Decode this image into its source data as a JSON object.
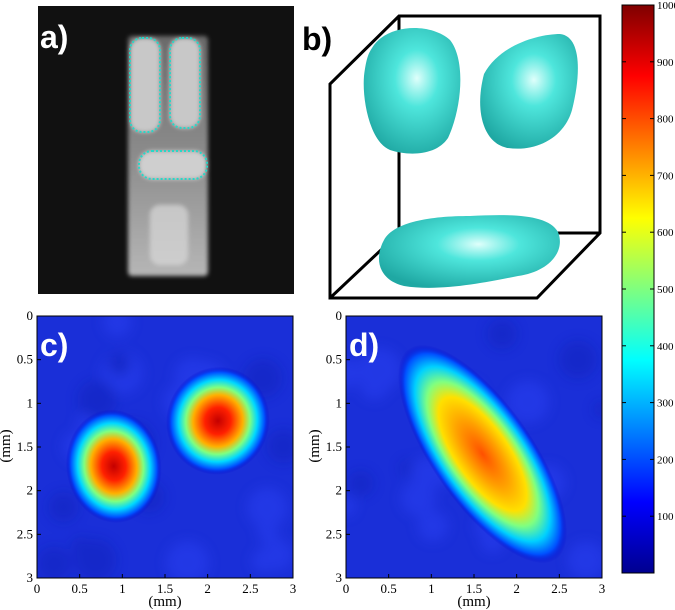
{
  "panels": {
    "a": {
      "label": "a)"
    },
    "b": {
      "label": "b)"
    }
  },
  "chart_data": [
    {
      "type": "heatmap",
      "panel": "c)",
      "xlabel": "(mm)",
      "ylabel": "(mm)",
      "xlim": [
        0,
        3
      ],
      "ylim": [
        0,
        3
      ],
      "x_ticks": [
        "0",
        "0.5",
        "1",
        "1.5",
        "2",
        "2.5",
        "3"
      ],
      "y_ticks": [
        "0",
        "0.5",
        "1",
        "1.5",
        "2",
        "2.5",
        "3"
      ],
      "blobs": [
        {
          "cx": 0.9,
          "cy": 1.72,
          "rx": 0.36,
          "ry": 0.42,
          "rot": -8,
          "peak": 980
        },
        {
          "cx": 2.12,
          "cy": 1.2,
          "rx": 0.39,
          "ry": 0.4,
          "rot": 15,
          "peak": 930
        }
      ]
    },
    {
      "type": "heatmap",
      "panel": "d)",
      "xlabel": "(mm)",
      "ylabel": "(mm)",
      "xlim": [
        0,
        3
      ],
      "ylim": [
        0,
        3
      ],
      "x_ticks": [
        "0",
        "0.5",
        "1",
        "1.5",
        "2",
        "2.5",
        "3"
      ],
      "y_ticks": [
        "0",
        "0.5",
        "1",
        "1.5",
        "2",
        "2.5",
        "3"
      ],
      "blobs": [
        {
          "cx": 1.6,
          "cy": 1.58,
          "rx": 0.38,
          "ry": 0.95,
          "rot": -35,
          "peak": 860
        }
      ]
    },
    {
      "type": "colorbar",
      "range": [
        0,
        1000
      ],
      "ticks": [
        "100",
        "200",
        "300",
        "400",
        "500",
        "600",
        "700",
        "800",
        "900",
        "1000"
      ]
    }
  ]
}
